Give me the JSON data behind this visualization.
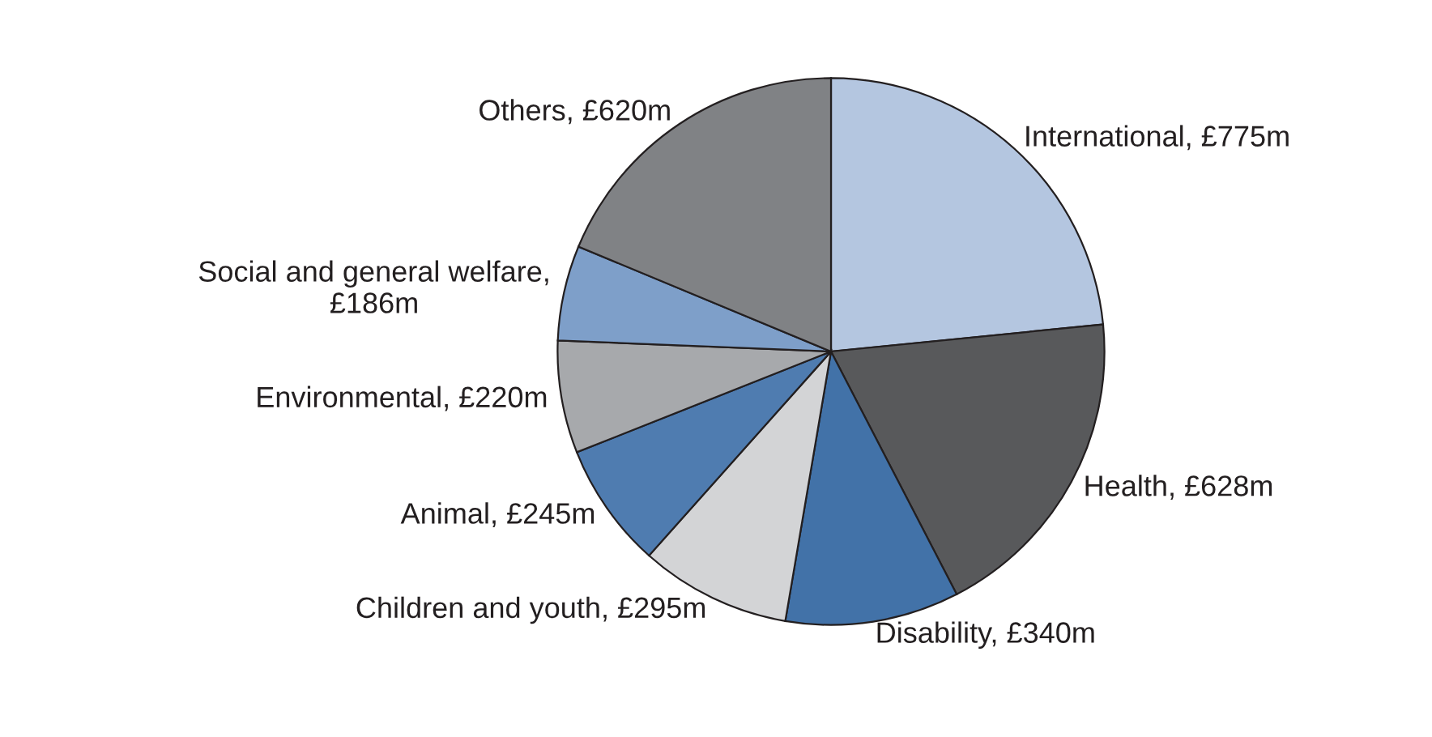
{
  "chart_data": {
    "type": "pie",
    "categories": [
      "International, £775m",
      "Health, £628m",
      "Disability, £340m",
      "Children and youth, £295m",
      "Animal, £245m",
      "Environmental, £220m",
      "Social and general welfare,\n£186m",
      "Others, £620m"
    ],
    "values": [
      775,
      628,
      340,
      295,
      245,
      220,
      186,
      620
    ],
    "colors": [
      "#b4c6e0",
      "#58595b",
      "#4272a8",
      "#d3d4d6",
      "#4f7cb0",
      "#a7a9ac",
      "#7e9fc9",
      "#808285"
    ]
  }
}
